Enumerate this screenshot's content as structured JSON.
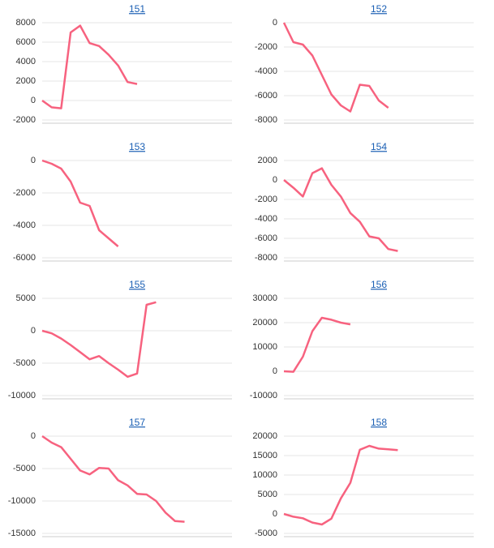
{
  "chart_data": [
    {
      "type": "line",
      "title": "151",
      "color": "#f7627f",
      "grid": true,
      "ylim": [
        -2000,
        8000
      ],
      "yticks": [
        -2000,
        0,
        2000,
        4000,
        6000,
        8000
      ],
      "values": [
        0,
        -700,
        -800,
        7000,
        7700,
        5900,
        5600,
        4700,
        3600,
        1900,
        1700,
        null,
        null,
        null,
        null,
        null,
        null,
        null,
        null,
        null,
        null
      ]
    },
    {
      "type": "line",
      "title": "152",
      "color": "#f7627f",
      "grid": true,
      "ylim": [
        -8000,
        0
      ],
      "yticks": [
        -8000,
        -6000,
        -4000,
        -2000,
        0
      ],
      "values": [
        0,
        -1600,
        -1800,
        -2700,
        -4300,
        -5900,
        -6800,
        -7300,
        -5100,
        -5200,
        -6400,
        -7000,
        null,
        null,
        null,
        null,
        null,
        null,
        null,
        null,
        null
      ]
    },
    {
      "type": "line",
      "title": "153",
      "color": "#f7627f",
      "grid": true,
      "ylim": [
        -6000,
        0
      ],
      "yticks": [
        -6000,
        -4000,
        -2000,
        0
      ],
      "values": [
        0,
        -200,
        -500,
        -1300,
        -2600,
        -2800,
        -4300,
        -4800,
        -5300,
        null,
        null,
        null,
        null,
        null,
        null,
        null,
        null,
        null,
        null,
        null,
        null
      ]
    },
    {
      "type": "line",
      "title": "154",
      "color": "#f7627f",
      "grid": true,
      "ylim": [
        -8000,
        2000
      ],
      "yticks": [
        -8000,
        -6000,
        -4000,
        -2000,
        0,
        2000
      ],
      "values": [
        0,
        -800,
        -1700,
        700,
        1200,
        -500,
        -1700,
        -3400,
        -4300,
        -5800,
        -6000,
        -7100,
        -7300,
        null,
        null,
        null,
        null,
        null,
        null,
        null,
        null
      ]
    },
    {
      "type": "line",
      "title": "155",
      "color": "#f7627f",
      "grid": true,
      "ylim": [
        -10000,
        5000
      ],
      "yticks": [
        -10000,
        -5000,
        0,
        5000
      ],
      "values": [
        0,
        -400,
        -1200,
        -2200,
        -3300,
        -4400,
        -3900,
        -5000,
        -6000,
        -7100,
        -6600,
        4000,
        4400,
        null,
        null,
        null,
        null,
        null,
        null,
        null,
        null
      ]
    },
    {
      "type": "line",
      "title": "156",
      "color": "#f7627f",
      "grid": true,
      "ylim": [
        -10000,
        30000
      ],
      "yticks": [
        -10000,
        0,
        10000,
        20000,
        30000
      ],
      "values": [
        0,
        -200,
        6000,
        16500,
        22000,
        21200,
        20000,
        19300,
        null,
        null,
        null,
        null,
        null,
        null,
        null,
        null,
        null,
        null,
        null,
        null,
        null
      ]
    },
    {
      "type": "line",
      "title": "157",
      "color": "#f7627f",
      "grid": true,
      "ylim": [
        -15000,
        0
      ],
      "yticks": [
        -15000,
        -10000,
        -5000,
        0
      ],
      "values": [
        0,
        -1000,
        -1700,
        -3500,
        -5300,
        -5900,
        -4900,
        -5000,
        -6800,
        -7600,
        -8900,
        -9000,
        -10000,
        -11800,
        -13100,
        -13200,
        null,
        null,
        null,
        null,
        null
      ]
    },
    {
      "type": "line",
      "title": "158",
      "color": "#f7627f",
      "grid": true,
      "ylim": [
        -5000,
        20000
      ],
      "yticks": [
        -5000,
        0,
        5000,
        10000,
        15000,
        20000
      ],
      "values": [
        0,
        -700,
        -1100,
        -2200,
        -2700,
        -1200,
        4000,
        8000,
        16500,
        17500,
        16800,
        16600,
        16400,
        null,
        null,
        null,
        null,
        null,
        null,
        null,
        null
      ]
    }
  ]
}
